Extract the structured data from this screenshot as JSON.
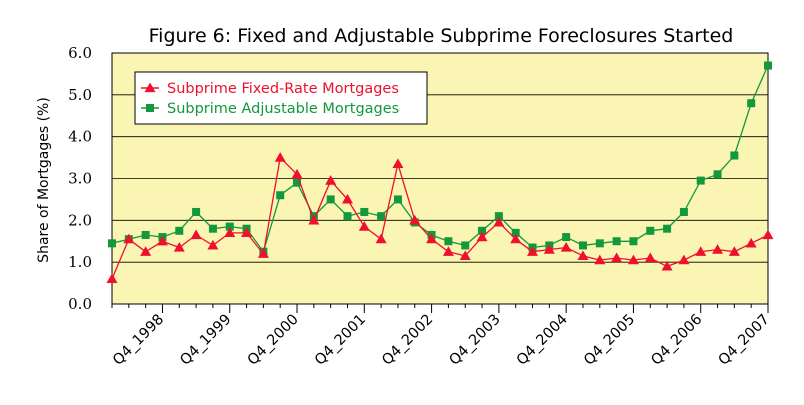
{
  "chart_data": {
    "type": "line",
    "title": "Figure 6: Fixed and Adjustable Subprime Foreclosures Started",
    "ylabel": "Share of Mortgages (%)",
    "xlabel": "",
    "ylim": [
      0,
      6
    ],
    "y_ticks": [
      "0.0",
      "1.0",
      "2.0",
      "3.0",
      "4.0",
      "5.0",
      "6.0"
    ],
    "x_tick_labels": [
      "Q4_1998",
      "Q4_1999",
      "Q4_2000",
      "Q4_2001",
      "Q4_2002",
      "Q4_2003",
      "Q4_2004",
      "Q4_2005",
      "Q4_2006",
      "Q4_2007"
    ],
    "x": [
      "Q1_1998",
      "Q2_1998",
      "Q3_1998",
      "Q4_1998",
      "Q1_1999",
      "Q2_1999",
      "Q3_1999",
      "Q4_1999",
      "Q1_2000",
      "Q2_2000",
      "Q3_2000",
      "Q4_2000",
      "Q1_2001",
      "Q2_2001",
      "Q3_2001",
      "Q4_2001",
      "Q1_2002",
      "Q2_2002",
      "Q3_2002",
      "Q4_2002",
      "Q1_2003",
      "Q2_2003",
      "Q3_2003",
      "Q4_2003",
      "Q1_2004",
      "Q2_2004",
      "Q3_2004",
      "Q4_2004",
      "Q1_2005",
      "Q2_2005",
      "Q3_2005",
      "Q4_2005",
      "Q1_2006",
      "Q2_2006",
      "Q3_2006",
      "Q4_2006",
      "Q1_2007",
      "Q2_2007",
      "Q3_2007",
      "Q4_2007"
    ],
    "grid": {
      "horizontal": true,
      "vertical": false
    },
    "legend_position": "top-left",
    "background_color": "#FAF5B3",
    "series": [
      {
        "name": "Subprime Fixed-Rate Mortgages",
        "color": "#F0102D",
        "marker": "triangle",
        "values": [
          0.6,
          1.55,
          1.25,
          1.5,
          1.35,
          1.65,
          1.4,
          1.7,
          1.7,
          1.2,
          3.5,
          3.1,
          2.0,
          2.95,
          2.5,
          1.85,
          1.55,
          3.35,
          2.0,
          1.55,
          1.25,
          1.15,
          1.6,
          1.95,
          1.55,
          1.25,
          1.3,
          1.35,
          1.15,
          1.05,
          1.1,
          1.05,
          1.1,
          0.9,
          1.05,
          1.25,
          1.3,
          1.25,
          1.45,
          1.65
        ]
      },
      {
        "name": "Subprime Adjustable Mortgages",
        "color": "#13983B",
        "marker": "square",
        "values": [
          1.45,
          1.55,
          1.65,
          1.6,
          1.75,
          2.2,
          1.8,
          1.85,
          1.8,
          1.25,
          2.6,
          2.9,
          2.1,
          2.5,
          2.1,
          2.2,
          2.1,
          2.5,
          1.95,
          1.65,
          1.5,
          1.4,
          1.75,
          2.1,
          1.7,
          1.35,
          1.4,
          1.6,
          1.4,
          1.45,
          1.5,
          1.5,
          1.75,
          1.8,
          2.2,
          2.95,
          3.1,
          3.55,
          4.8,
          5.7
        ]
      }
    ]
  }
}
